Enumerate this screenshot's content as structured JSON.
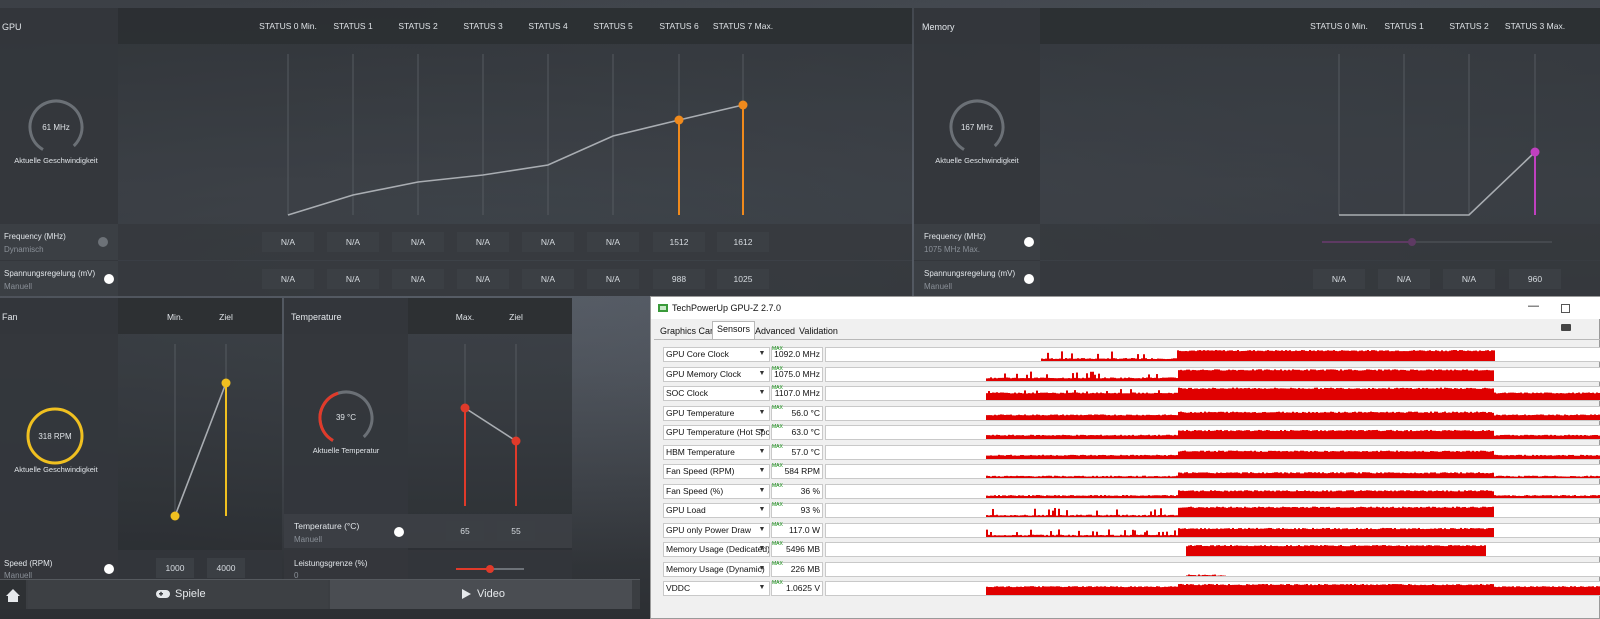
{
  "gpu_panel": {
    "title": "GPU",
    "statuses": [
      "STATUS 0 Min.",
      "STATUS 1",
      "STATUS 2",
      "STATUS 3",
      "STATUS 4",
      "STATUS 5",
      "STATUS 6",
      "STATUS 7 Max."
    ],
    "gauge_value": "61 MHz",
    "gauge_label": "Aktuelle Geschwindigkeit",
    "frequency_label": "Frequency (MHz)",
    "frequency_mode": "Dynamisch",
    "frequency_values": [
      "N/A",
      "N/A",
      "N/A",
      "N/A",
      "N/A",
      "N/A",
      "1512",
      "1612"
    ],
    "voltage_label": "Spannungsregelung (mV)",
    "voltage_mode": "Manuell",
    "voltage_values": [
      "N/A",
      "N/A",
      "N/A",
      "N/A",
      "N/A",
      "N/A",
      "988",
      "1025"
    ],
    "accent_color": "#f08a1c"
  },
  "memory_panel": {
    "title": "Memory",
    "statuses": [
      "STATUS 0 Min.",
      "STATUS 1",
      "STATUS 2",
      "STATUS 3 Max."
    ],
    "gauge_value": "167 MHz",
    "gauge_label": "Aktuelle Geschwindigkeit",
    "frequency_label": "Frequency (MHz)",
    "frequency_mode": "1075 MHz Max.",
    "voltage_label": "Spannungsregelung (mV)",
    "voltage_mode": "Manuell",
    "voltage_values": [
      "N/A",
      "N/A",
      "N/A",
      "960"
    ],
    "accent_color": "#c040c0"
  },
  "fan_panel": {
    "title": "Fan",
    "col_min": "Min.",
    "col_target": "Ziel",
    "gauge_value": "318 RPM",
    "gauge_label": "Aktuelle Geschwindigkeit",
    "speed_label": "Speed (RPM)",
    "speed_mode": "Manuell",
    "speed_values": [
      "1000",
      "4000"
    ],
    "accent_color": "#f0c020"
  },
  "temperature_panel": {
    "title": "Temperature",
    "col_max": "Max.",
    "col_target": "Ziel",
    "gauge_value": "39 °C",
    "gauge_label": "Aktuelle Temperatur",
    "temp_label": "Temperature (°C)",
    "temp_mode": "Manuell",
    "temp_values": [
      "65",
      "55"
    ],
    "power_label": "Leistungsgrenze (%)",
    "power_value": "0",
    "accent_color": "#e03a2a"
  },
  "bottom_nav": {
    "home_icon": "home-icon",
    "games_label": "Spiele",
    "video_label": "Video"
  },
  "gpuz": {
    "title": "TechPowerUp GPU-Z 2.7.0",
    "tabs": [
      "Graphics Card",
      "Sensors",
      "Advanced",
      "Validation"
    ],
    "active_tab": "Sensors",
    "max_tag": "MAX",
    "sensors": [
      {
        "name": "GPU Core Clock",
        "value": "1092.0 MHz"
      },
      {
        "name": "GPU Memory Clock",
        "value": "1075.0 MHz"
      },
      {
        "name": "SOC Clock",
        "value": "1107.0 MHz"
      },
      {
        "name": "GPU Temperature",
        "value": "56.0 °C"
      },
      {
        "name": "GPU Temperature (Hot Spot)",
        "value": "63.0 °C"
      },
      {
        "name": "HBM Temperature",
        "value": "57.0 °C"
      },
      {
        "name": "Fan Speed (RPM)",
        "value": "584 RPM"
      },
      {
        "name": "Fan Speed (%)",
        "value": "36 %"
      },
      {
        "name": "GPU Load",
        "value": "93 %"
      },
      {
        "name": "GPU only Power Draw",
        "value": "117.0 W"
      },
      {
        "name": "Memory Usage (Dedicated)",
        "value": "5496 MB"
      },
      {
        "name": "Memory Usage (Dynamic)",
        "value": "226 MB"
      },
      {
        "name": "VDDC",
        "value": "1.0625 V"
      }
    ],
    "graph_color": "#e00000"
  }
}
